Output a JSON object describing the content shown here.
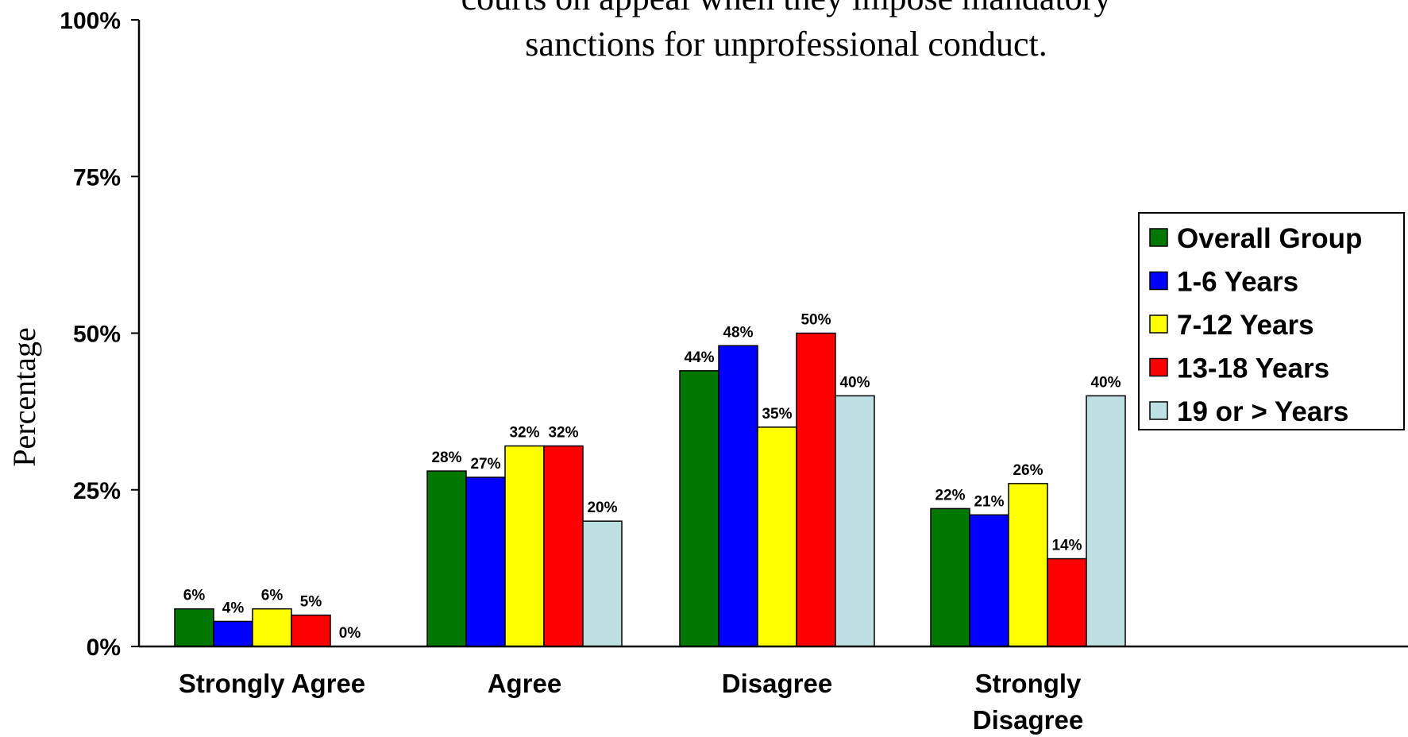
{
  "chart_data": {
    "type": "bar",
    "title_lines": [
      "courts on appeal when they impose mandatory",
      "sanctions for unprofessional conduct."
    ],
    "ylabel": "Percentage",
    "xlabel": "",
    "ylim": [
      0,
      100
    ],
    "yticks": [
      "0%",
      "25%",
      "50%",
      "75%",
      "100%"
    ],
    "ytick_values": [
      0,
      25,
      50,
      75,
      100
    ],
    "categories": [
      [
        "Strongly Agree"
      ],
      [
        "Agree"
      ],
      [
        "Disagree"
      ],
      [
        "Strongly",
        "Disagree"
      ]
    ],
    "series": [
      {
        "name": "Overall Group",
        "color": "#007800",
        "values": [
          6,
          28,
          44,
          22
        ],
        "labels": [
          "6%",
          "28%",
          "44%",
          "22%"
        ]
      },
      {
        "name": "1-6 Years",
        "color": "#0000ff",
        "values": [
          4,
          27,
          48,
          21
        ],
        "labels": [
          "4%",
          "27%",
          "48%",
          "21%"
        ]
      },
      {
        "name": "7-12 Years",
        "color": "#ffff00",
        "values": [
          6,
          32,
          35,
          26
        ],
        "labels": [
          "6%",
          "32%",
          "35%",
          "26%"
        ]
      },
      {
        "name": "13-18 Years",
        "color": "#ff0000",
        "values": [
          5,
          32,
          50,
          14
        ],
        "labels": [
          "5%",
          "32%",
          "50%",
          "14%"
        ]
      },
      {
        "name": "19 or > Years",
        "color": "#bde0e3",
        "values": [
          0,
          20,
          40,
          40
        ],
        "labels": [
          "0%",
          "20%",
          "40%",
          "40%"
        ]
      }
    ],
    "legend_position": "right",
    "grid": false
  }
}
